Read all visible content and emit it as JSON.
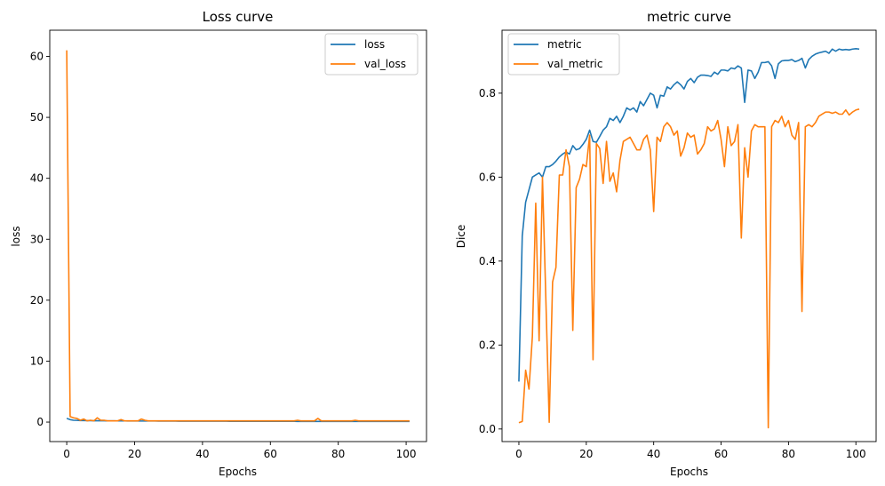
{
  "chart_data": [
    {
      "type": "line",
      "title": "Loss curve",
      "xlabel": "Epochs",
      "ylabel": "loss",
      "xlim": [
        -5,
        106
      ],
      "ylim": [
        -3.2,
        64.3
      ],
      "xticks": [
        0,
        20,
        40,
        60,
        80,
        100
      ],
      "yticks": [
        0,
        10,
        20,
        30,
        40,
        50,
        60
      ],
      "legend": "top-right",
      "x": [
        0,
        1,
        2,
        3,
        4,
        5,
        6,
        7,
        8,
        9,
        10,
        11,
        12,
        13,
        14,
        15,
        16,
        17,
        18,
        19,
        20,
        21,
        22,
        23,
        24,
        25,
        26,
        27,
        28,
        29,
        30,
        31,
        32,
        33,
        34,
        35,
        36,
        37,
        38,
        39,
        40,
        41,
        42,
        43,
        44,
        45,
        46,
        47,
        48,
        49,
        50,
        51,
        52,
        53,
        54,
        55,
        56,
        57,
        58,
        59,
        60,
        61,
        62,
        63,
        64,
        65,
        66,
        67,
        68,
        69,
        70,
        71,
        72,
        73,
        74,
        75,
        76,
        77,
        78,
        79,
        80,
        81,
        82,
        83,
        84,
        85,
        86,
        87,
        88,
        89,
        90,
        91,
        92,
        93,
        94,
        95,
        96,
        97,
        98,
        99,
        100,
        101
      ],
      "series": [
        {
          "name": "loss",
          "color": "#1f77b4",
          "values": [
            0.6,
            0.4,
            0.3,
            0.28,
            0.26,
            0.25,
            0.24,
            0.23,
            0.22,
            0.22,
            0.21,
            0.21,
            0.2,
            0.2,
            0.2,
            0.19,
            0.19,
            0.19,
            0.18,
            0.18,
            0.18,
            0.18,
            0.17,
            0.17,
            0.17,
            0.17,
            0.17,
            0.16,
            0.16,
            0.16,
            0.16,
            0.16,
            0.16,
            0.15,
            0.15,
            0.15,
            0.15,
            0.15,
            0.15,
            0.15,
            0.14,
            0.14,
            0.14,
            0.14,
            0.14,
            0.14,
            0.14,
            0.14,
            0.13,
            0.13,
            0.13,
            0.13,
            0.13,
            0.13,
            0.13,
            0.13,
            0.13,
            0.12,
            0.12,
            0.12,
            0.12,
            0.12,
            0.12,
            0.12,
            0.12,
            0.12,
            0.12,
            0.12,
            0.11,
            0.11,
            0.11,
            0.11,
            0.11,
            0.11,
            0.11,
            0.11,
            0.11,
            0.11,
            0.11,
            0.1,
            0.1,
            0.1,
            0.1,
            0.1,
            0.1,
            0.1,
            0.1,
            0.1,
            0.1,
            0.1,
            0.1,
            0.1,
            0.1,
            0.1,
            0.1,
            0.1,
            0.1,
            0.1,
            0.1,
            0.1,
            0.1,
            0.1
          ]
        },
        {
          "name": "val_loss",
          "color": "#ff7f0e",
          "values": [
            61.0,
            0.9,
            0.7,
            0.6,
            0.3,
            0.5,
            0.2,
            0.3,
            0.2,
            0.7,
            0.3,
            0.3,
            0.2,
            0.2,
            0.2,
            0.2,
            0.4,
            0.2,
            0.2,
            0.2,
            0.2,
            0.2,
            0.5,
            0.3,
            0.2,
            0.2,
            0.2,
            0.2,
            0.2,
            0.2,
            0.2,
            0.2,
            0.2,
            0.2,
            0.2,
            0.2,
            0.2,
            0.2,
            0.2,
            0.2,
            0.2,
            0.2,
            0.2,
            0.2,
            0.2,
            0.2,
            0.2,
            0.2,
            0.2,
            0.2,
            0.2,
            0.2,
            0.2,
            0.2,
            0.2,
            0.2,
            0.2,
            0.2,
            0.2,
            0.2,
            0.2,
            0.2,
            0.2,
            0.2,
            0.2,
            0.2,
            0.2,
            0.2,
            0.3,
            0.2,
            0.2,
            0.2,
            0.2,
            0.2,
            0.6,
            0.2,
            0.2,
            0.2,
            0.2,
            0.2,
            0.2,
            0.2,
            0.2,
            0.2,
            0.2,
            0.3,
            0.2,
            0.2,
            0.2,
            0.2,
            0.2,
            0.2,
            0.2,
            0.2,
            0.2,
            0.2,
            0.2,
            0.2,
            0.2,
            0.2,
            0.2,
            0.2
          ]
        }
      ]
    },
    {
      "type": "line",
      "title": "metric curve",
      "xlabel": "Epochs",
      "ylabel": "Dice",
      "xlim": [
        -5,
        106
      ],
      "ylim": [
        -0.03,
        0.95
      ],
      "xticks": [
        0,
        20,
        40,
        60,
        80,
        100
      ],
      "yticks": [
        0.0,
        0.2,
        0.4,
        0.6,
        0.8
      ],
      "ytick_labels": [
        "0.0",
        "0.2",
        "0.4",
        "0.6",
        "0.8"
      ],
      "legend": "top-left",
      "x": [
        0,
        1,
        2,
        3,
        4,
        5,
        6,
        7,
        8,
        9,
        10,
        11,
        12,
        13,
        14,
        15,
        16,
        17,
        18,
        19,
        20,
        21,
        22,
        23,
        24,
        25,
        26,
        27,
        28,
        29,
        30,
        31,
        32,
        33,
        34,
        35,
        36,
        37,
        38,
        39,
        40,
        41,
        42,
        43,
        44,
        45,
        46,
        47,
        48,
        49,
        50,
        51,
        52,
        53,
        54,
        55,
        56,
        57,
        58,
        59,
        60,
        61,
        62,
        63,
        64,
        65,
        66,
        67,
        68,
        69,
        70,
        71,
        72,
        73,
        74,
        75,
        76,
        77,
        78,
        79,
        80,
        81,
        82,
        83,
        84,
        85,
        86,
        87,
        88,
        89,
        90,
        91,
        92,
        93,
        94,
        95,
        96,
        97,
        98,
        99,
        100,
        101
      ],
      "series": [
        {
          "name": "metric",
          "color": "#1f77b4",
          "values": [
            0.113,
            0.46,
            0.54,
            0.57,
            0.6,
            0.605,
            0.61,
            0.6,
            0.625,
            0.625,
            0.63,
            0.638,
            0.648,
            0.655,
            0.66,
            0.655,
            0.675,
            0.665,
            0.668,
            0.678,
            0.69,
            0.712,
            0.685,
            0.683,
            0.697,
            0.712,
            0.72,
            0.74,
            0.735,
            0.745,
            0.73,
            0.745,
            0.765,
            0.76,
            0.765,
            0.755,
            0.78,
            0.77,
            0.785,
            0.8,
            0.795,
            0.765,
            0.795,
            0.793,
            0.815,
            0.81,
            0.82,
            0.827,
            0.82,
            0.81,
            0.828,
            0.835,
            0.825,
            0.838,
            0.843,
            0.843,
            0.842,
            0.84,
            0.85,
            0.845,
            0.855,
            0.855,
            0.853,
            0.86,
            0.858,
            0.865,
            0.86,
            0.778,
            0.855,
            0.853,
            0.835,
            0.85,
            0.873,
            0.873,
            0.875,
            0.865,
            0.835,
            0.87,
            0.877,
            0.878,
            0.878,
            0.88,
            0.875,
            0.878,
            0.883,
            0.86,
            0.88,
            0.888,
            0.893,
            0.896,
            0.898,
            0.9,
            0.895,
            0.905,
            0.9,
            0.905,
            0.903,
            0.904,
            0.903,
            0.905,
            0.906,
            0.905
          ]
        },
        {
          "name": "val_metric",
          "color": "#ff7f0e",
          "values": [
            0.015,
            0.018,
            0.14,
            0.095,
            0.22,
            0.538,
            0.21,
            0.6,
            0.31,
            0.016,
            0.35,
            0.385,
            0.605,
            0.605,
            0.665,
            0.625,
            0.235,
            0.575,
            0.595,
            0.63,
            0.625,
            0.7,
            0.165,
            0.68,
            0.668,
            0.585,
            0.685,
            0.59,
            0.61,
            0.565,
            0.64,
            0.685,
            0.69,
            0.695,
            0.68,
            0.665,
            0.665,
            0.69,
            0.7,
            0.665,
            0.518,
            0.695,
            0.685,
            0.72,
            0.73,
            0.72,
            0.7,
            0.71,
            0.65,
            0.67,
            0.705,
            0.695,
            0.7,
            0.655,
            0.665,
            0.68,
            0.72,
            0.71,
            0.715,
            0.735,
            0.69,
            0.625,
            0.72,
            0.675,
            0.685,
            0.725,
            0.455,
            0.67,
            0.6,
            0.71,
            0.725,
            0.72,
            0.72,
            0.72,
            0.003,
            0.72,
            0.735,
            0.73,
            0.745,
            0.72,
            0.735,
            0.7,
            0.69,
            0.73,
            0.28,
            0.72,
            0.725,
            0.72,
            0.73,
            0.745,
            0.75,
            0.755,
            0.755,
            0.752,
            0.755,
            0.75,
            0.75,
            0.76,
            0.748,
            0.755,
            0.76,
            0.762
          ]
        }
      ]
    }
  ]
}
